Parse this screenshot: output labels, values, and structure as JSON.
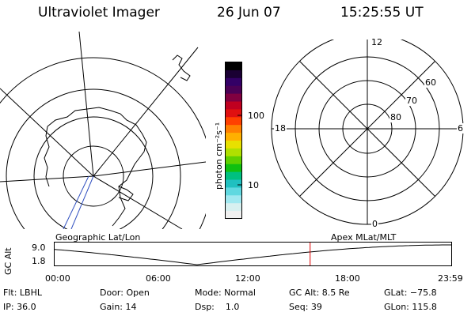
{
  "header": {
    "instrument": "Ultraviolet Imager",
    "date": "26 Jun 07",
    "time": "15:25:55 UT"
  },
  "colorbar": {
    "unit_label": "photon cm⁻²s⁻¹",
    "tick_100": "100",
    "tick_10": "10",
    "colors": [
      "#000000",
      "#1a0033",
      "#330066",
      "#4b0055",
      "#800040",
      "#c00020",
      "#e01010",
      "#ff4000",
      "#ff8000",
      "#ffb000",
      "#e8e000",
      "#b0e000",
      "#60d000",
      "#10c010",
      "#00c080",
      "#20c0c0",
      "#60d8e0",
      "#a0e8f0",
      "#d8f0f0",
      "#f0f0f0"
    ]
  },
  "polar_grid": {
    "labels": {
      "top": "12",
      "bottom": "0",
      "left": "18",
      "right": "6"
    },
    "lat_labels": [
      "60",
      "70",
      "80"
    ]
  },
  "timeline": {
    "left_title": "Geographic Lat/Lon",
    "right_title": "Apex MLat/MLT",
    "axis_label": "GC Alt",
    "y_top": "9.0",
    "y_bottom": "1.8",
    "x_ticks": [
      "00:00",
      "06:00",
      "12:00",
      "18:00",
      "23:59"
    ],
    "current_hour": 15.43
  },
  "footer": {
    "row1": {
      "filter": "Flt: LBHL",
      "door": "Door: Open",
      "mode": "Mode: Normal",
      "gc_alt": "GC Alt: 8.5 Re",
      "glat": "GLat: −75.8"
    },
    "row2": {
      "ip": "IP: 36.0",
      "gain": "Gain: 14",
      "dsp": "Dsp:    1.0",
      "seq": "Seq: 39",
      "glon": "GLon: 115.8"
    }
  }
}
